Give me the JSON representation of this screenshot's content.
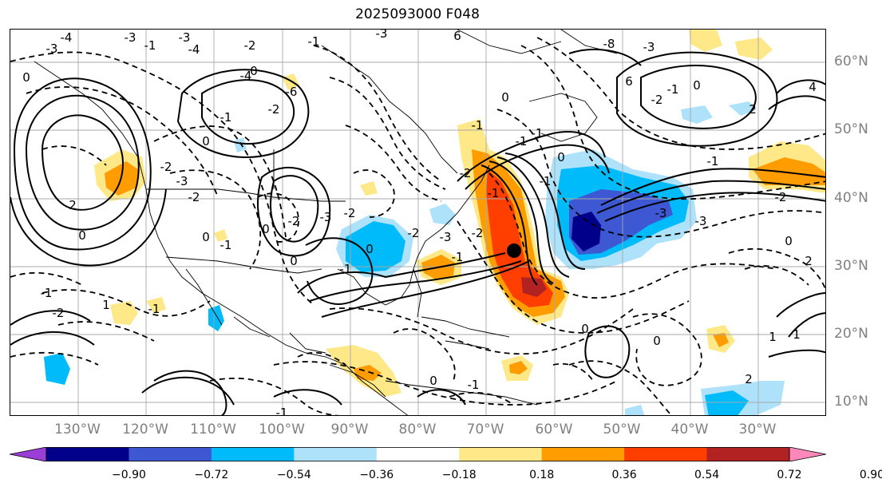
{
  "title": "2025093000 F048",
  "map": {
    "lon_labels": [
      "130°W",
      "120°W",
      "110°W",
      "100°W",
      "90°W",
      "80°W",
      "70°W",
      "60°W",
      "50°W",
      "40°W",
      "30°W"
    ],
    "lat_labels": [
      "60°N",
      "50°N",
      "40°N",
      "30°N",
      "20°N",
      "10°N"
    ],
    "contour_labels": [
      "-3",
      "-4",
      "-3",
      "-1",
      "-3",
      "-4",
      "-2",
      "-1",
      "-3",
      "6",
      "-4",
      "0",
      "-6",
      "-2",
      "-1",
      "0",
      "-2",
      "-3",
      "-2",
      "0",
      "-1",
      "0",
      "-2",
      "-3",
      "-2",
      "0",
      "-1",
      "0",
      "-2",
      "-3",
      "-1",
      "-2",
      "-1",
      "-2",
      "-1",
      "0",
      "-1",
      "-1",
      "0",
      "-1",
      "2",
      "0",
      "0",
      "-1",
      "-2",
      "1",
      "-1",
      "-8",
      "-3",
      "6",
      "-2",
      "-1",
      "0",
      "4",
      "2",
      "-3",
      "-3",
      "-1",
      "-2",
      "0",
      "2",
      "1",
      "0",
      "0",
      "1",
      "2",
      "-1",
      "0",
      "-1"
    ],
    "center_marker": "storm-center",
    "colors": {
      "pink": "#ff88bb",
      "dark_red": "#b22222",
      "red_orange": "#ff3e00",
      "orange": "#ff9c00",
      "light_yellow": "#ffe887",
      "light_blue": "#aee1fa",
      "cyan": "#00bbfa",
      "medium_blue": "#3d58d2",
      "navy": "#00008b",
      "purple": "#9a3ed8"
    }
  },
  "colorbar": {
    "ticks": [
      "−0.90",
      "−0.72",
      "−0.54",
      "−0.36",
      "−0.18",
      "0.18",
      "0.36",
      "0.54",
      "0.72",
      "0.90"
    ],
    "colors": [
      "#9a3ed8",
      "#00008b",
      "#3d58d2",
      "#00bbfa",
      "#aee1fa",
      "#ffffff",
      "#ffe887",
      "#ff9c00",
      "#ff3e00",
      "#b22222",
      "#ff88bb"
    ]
  }
}
